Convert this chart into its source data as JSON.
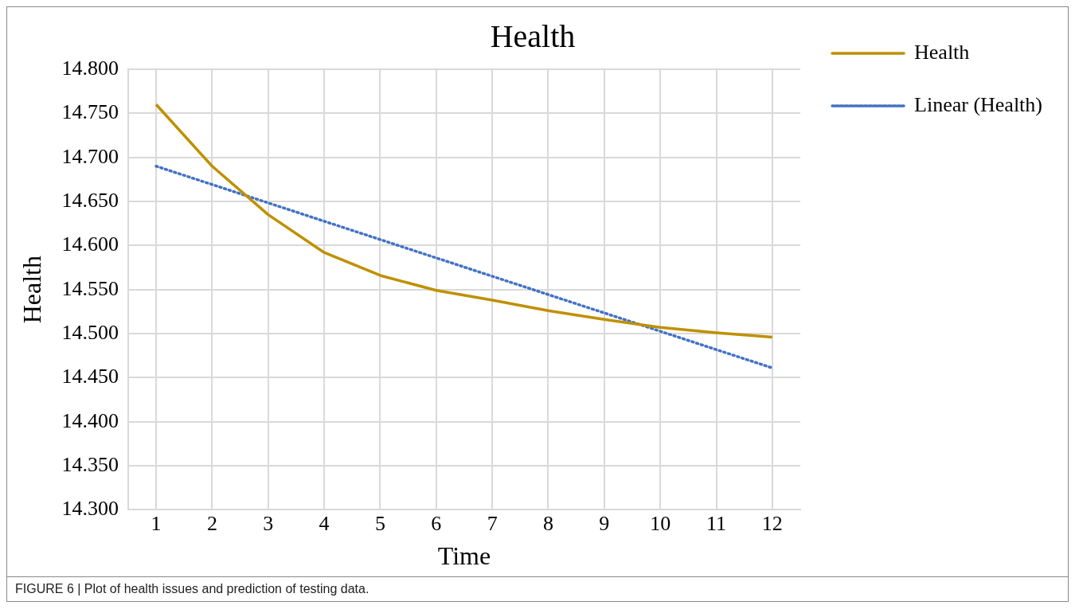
{
  "chart_data": {
    "type": "line",
    "title": "Health",
    "xlabel": "Time",
    "ylabel": "Health",
    "x": [
      1,
      2,
      3,
      4,
      5,
      6,
      7,
      8,
      9,
      10,
      11,
      12
    ],
    "xlim": [
      0.5,
      12.5
    ],
    "xticks": [
      1,
      2,
      3,
      4,
      5,
      6,
      7,
      8,
      9,
      10,
      11,
      12
    ],
    "ylim": [
      14.3,
      14.8
    ],
    "yticks": [
      {
        "value": 14.3,
        "label": "14.300"
      },
      {
        "value": 14.35,
        "label": "14.350"
      },
      {
        "value": 14.4,
        "label": "14.400"
      },
      {
        "value": 14.45,
        "label": "14.450"
      },
      {
        "value": 14.5,
        "label": "14.500"
      },
      {
        "value": 14.55,
        "label": "14.550"
      },
      {
        "value": 14.6,
        "label": "14.600"
      },
      {
        "value": 14.65,
        "label": "14.650"
      },
      {
        "value": 14.7,
        "label": "14.700"
      },
      {
        "value": 14.75,
        "label": "14.750"
      },
      {
        "value": 14.8,
        "label": "14.800"
      }
    ],
    "series": [
      {
        "name": "Health",
        "color": "#bf9000",
        "line_style": "solid",
        "values": [
          14.76,
          14.69,
          14.635,
          14.592,
          14.566,
          14.549,
          14.538,
          14.526,
          14.516,
          14.507,
          14.501,
          14.496
        ]
      },
      {
        "name": "Linear (Health)",
        "color": "#4472c4",
        "line_style": "dotted",
        "x": [
          1,
          12
        ],
        "values": [
          14.69,
          14.461
        ]
      }
    ],
    "grid": true,
    "legend": "right",
    "marker": "none",
    "annotations": [
      "FIGURE 6 | Plot of health issues and prediction of testing data."
    ]
  }
}
